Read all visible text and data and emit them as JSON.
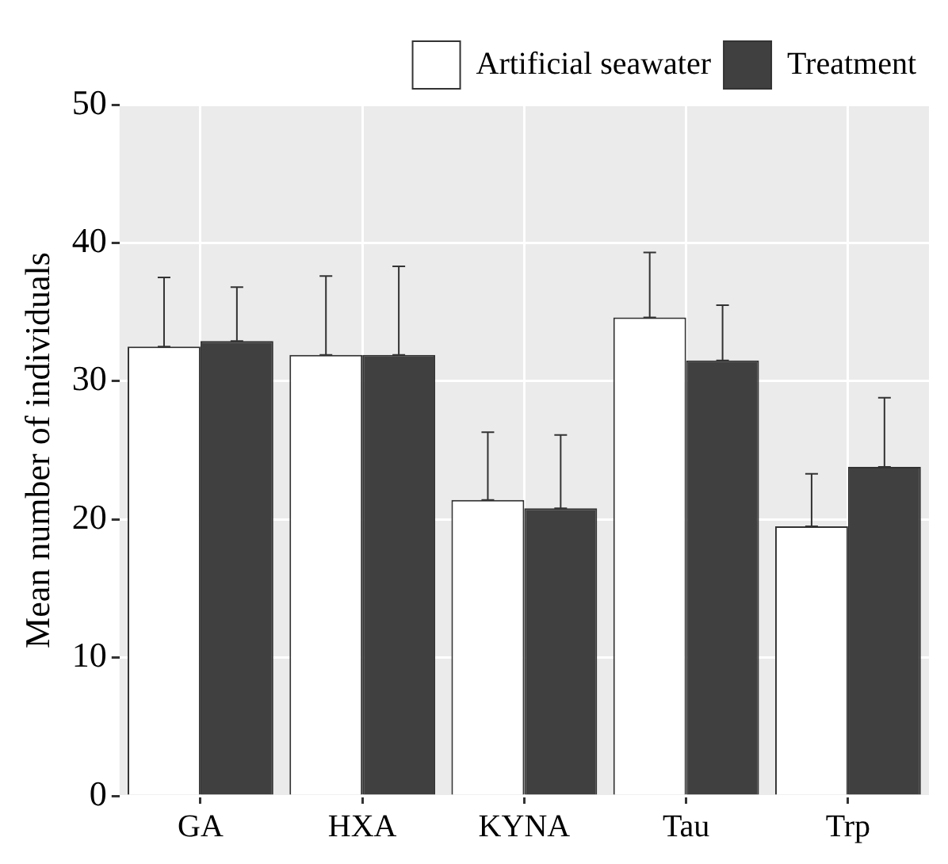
{
  "chart_data": {
    "type": "bar",
    "ylabel": "Mean number of individuals",
    "categories": [
      "GA",
      "HXA",
      "KYNA",
      "Tau",
      "Trp"
    ],
    "series": [
      {
        "name": "Artificial seawater",
        "color": "#ffffff",
        "values": [
          32.5,
          31.9,
          21.4,
          34.6,
          19.5
        ],
        "errors": [
          [
            32.5,
            37.5
          ],
          [
            31.9,
            37.6
          ],
          [
            21.4,
            26.3
          ],
          [
            34.6,
            39.3
          ],
          [
            19.5,
            23.3
          ]
        ]
      },
      {
        "name": "Treatment",
        "color": "#404040",
        "values": [
          32.9,
          31.9,
          20.8,
          31.5,
          23.8
        ],
        "errors": [
          [
            32.9,
            36.8
          ],
          [
            31.9,
            38.3
          ],
          [
            20.8,
            26.1
          ],
          [
            31.5,
            35.5
          ],
          [
            23.8,
            28.8
          ]
        ]
      }
    ],
    "ylim": [
      0,
      50
    ],
    "yticks": [
      0,
      10,
      20,
      30,
      40,
      50
    ],
    "grid": true,
    "legend": "top right"
  }
}
